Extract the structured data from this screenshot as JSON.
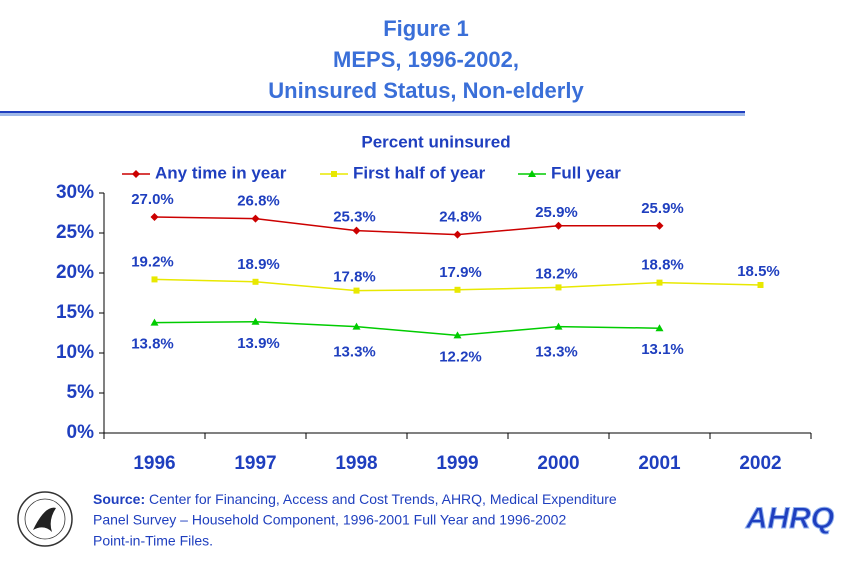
{
  "chart_data": {
    "type": "line",
    "title": [
      "Figure 1",
      "MEPS, 1996-2002,",
      "Uninsured Status, Non-elderly"
    ],
    "subtitle": "Percent uninsured",
    "categories": [
      "1996",
      "1997",
      "1998",
      "1999",
      "2000",
      "2001",
      "2002"
    ],
    "series": [
      {
        "name": "Any time in year",
        "color": "#cc0000",
        "marker": "diamond",
        "label_position": "above",
        "values": [
          27.0,
          26.8,
          25.3,
          24.8,
          25.9,
          25.9,
          null
        ],
        "value_labels": [
          "27.0%",
          "26.8%",
          "25.3%",
          "24.8%",
          "25.9%",
          "25.9%",
          null
        ]
      },
      {
        "name": "First half of year",
        "color": "#ffff00",
        "marker": "square",
        "label_position": "above",
        "values": [
          19.2,
          18.9,
          17.8,
          17.9,
          18.2,
          18.8,
          18.5
        ],
        "value_labels": [
          "19.2%",
          "18.9%",
          "17.8%",
          "17.9%",
          "18.2%",
          "18.8%",
          "18.5%"
        ]
      },
      {
        "name": "Full year",
        "color": "#00cc00",
        "marker": "triangle",
        "label_position": "below",
        "values": [
          13.8,
          13.9,
          13.3,
          12.2,
          13.3,
          13.1,
          null
        ],
        "value_labels": [
          "13.8%",
          "13.9%",
          "13.3%",
          "12.2%",
          "13.3%",
          "13.1%",
          null
        ]
      }
    ],
    "ylim": [
      0,
      30
    ],
    "yticks": [
      {
        "value": 0,
        "label": "0%"
      },
      {
        "value": 5,
        "label": "5%"
      },
      {
        "value": 10,
        "label": "10%"
      },
      {
        "value": 15,
        "label": "15%"
      },
      {
        "value": 20,
        "label": "20%"
      },
      {
        "value": 25,
        "label": "25%"
      },
      {
        "value": 30,
        "label": "30%"
      }
    ],
    "grid": false
  },
  "footer": {
    "source_label": "Source:",
    "source_lines": [
      "Center for Financing, Access and Cost Trends, AHRQ, Medical Expenditure",
      "Panel Survey – Household Component, 1996-2001 Full Year and 1996-2002",
      "Point-in-Time Files."
    ],
    "logo_text": "AHRQ"
  }
}
